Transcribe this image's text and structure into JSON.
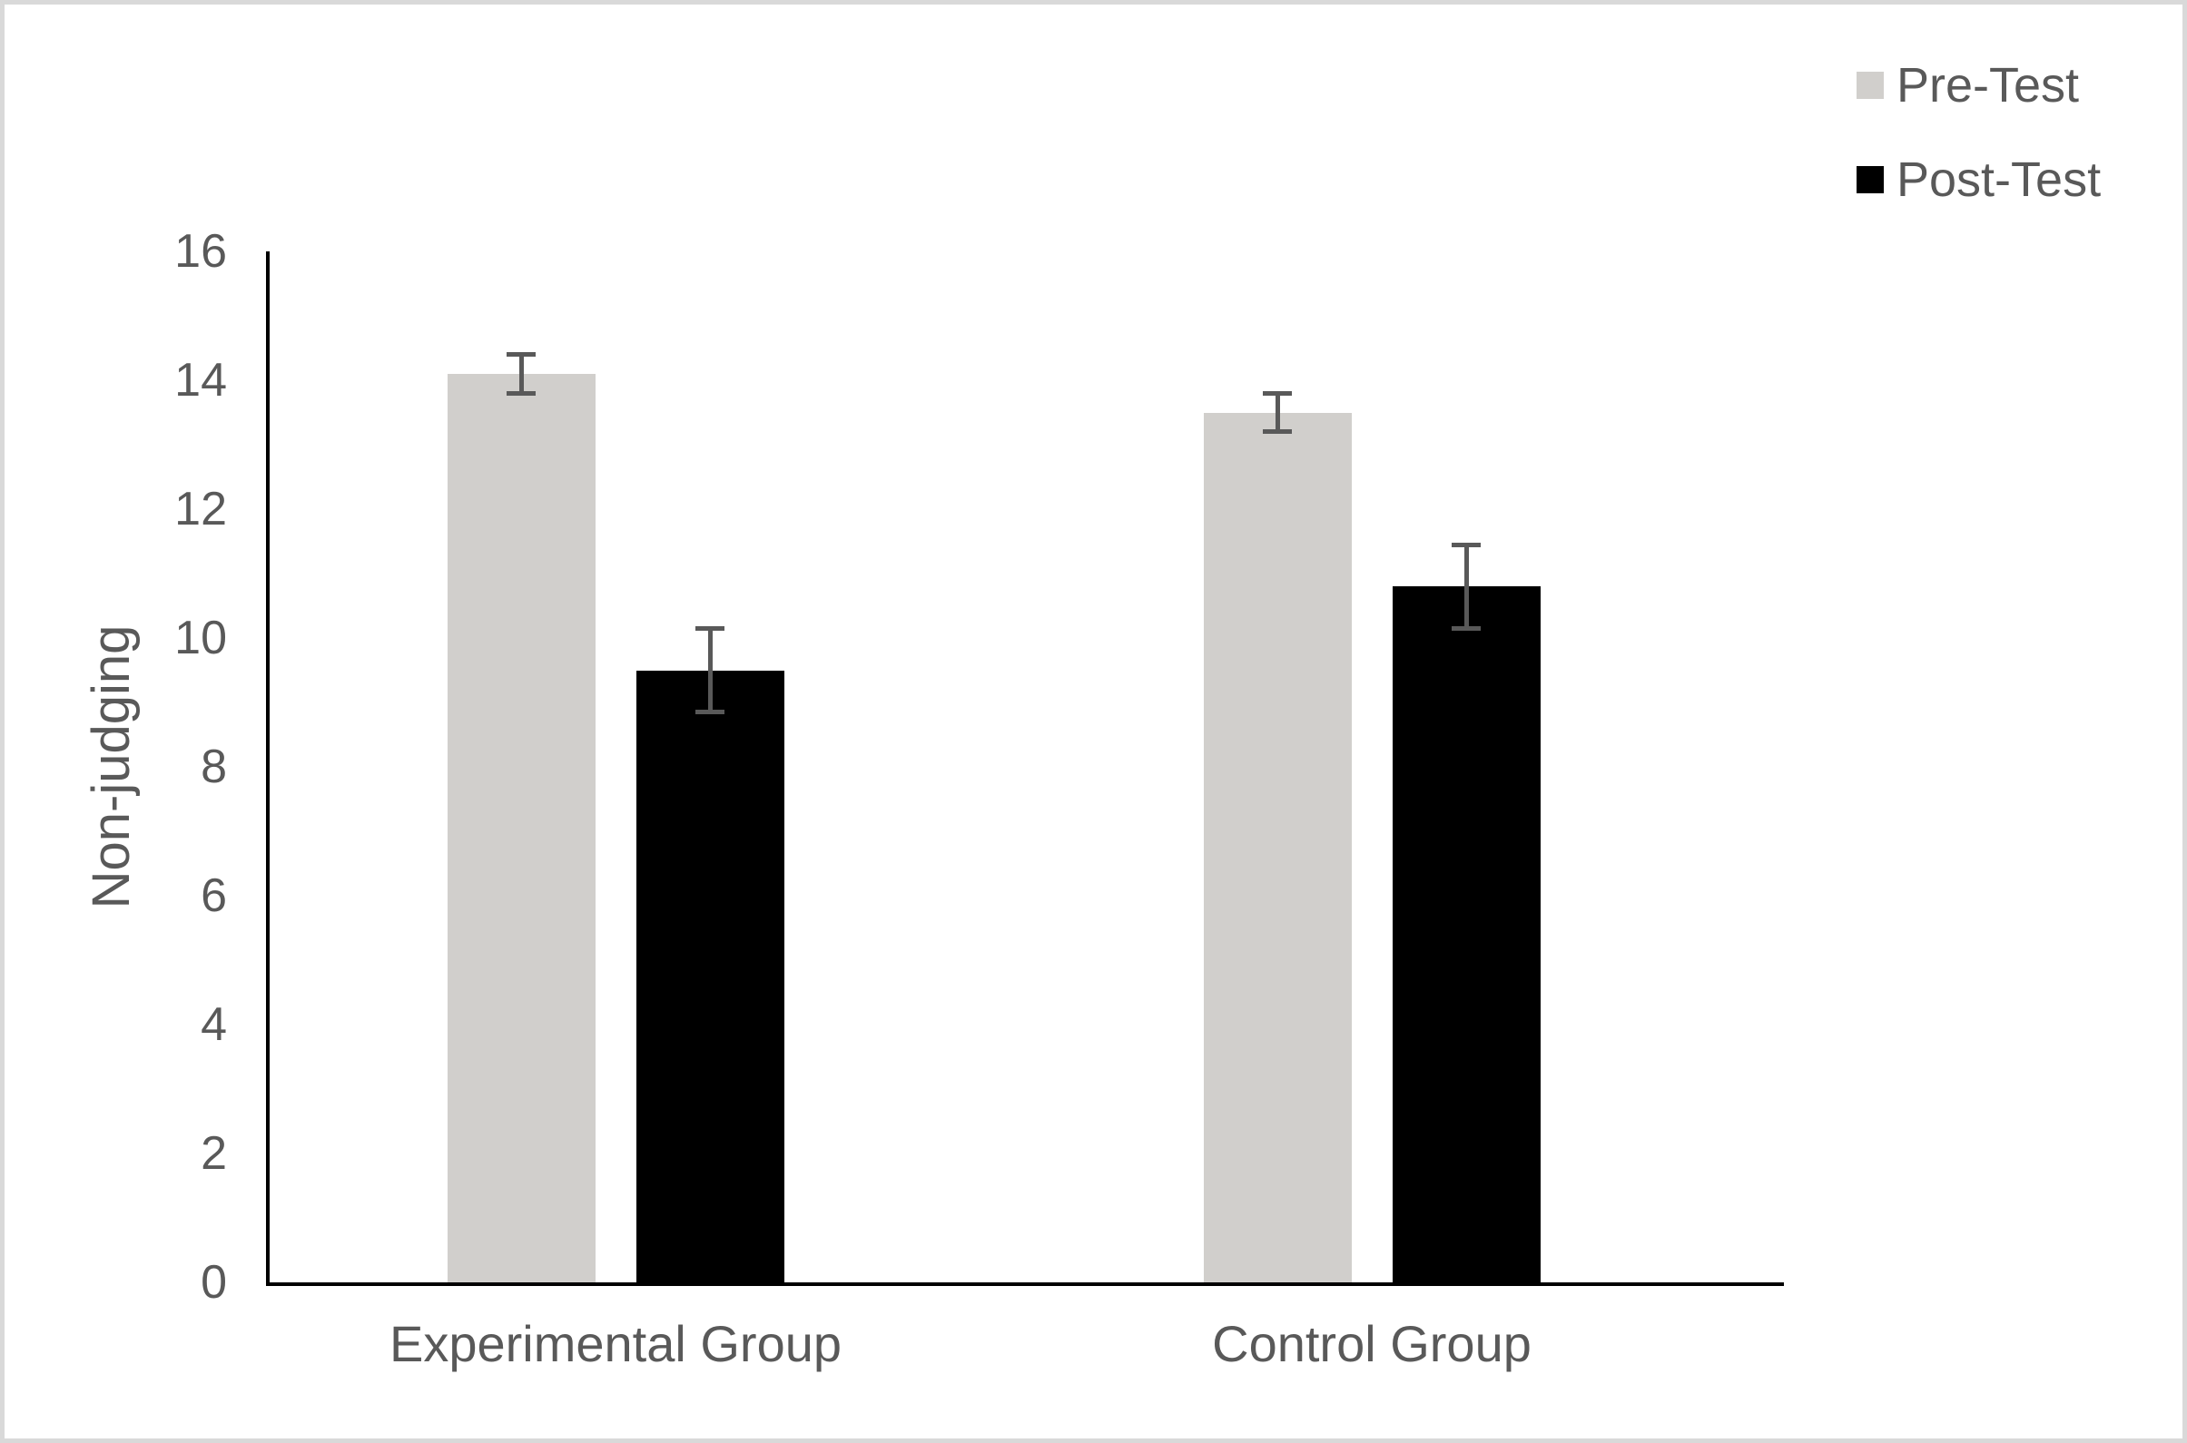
{
  "chart_data": {
    "type": "bar",
    "title": "",
    "xlabel": "",
    "ylabel": "Non-judging",
    "categories": [
      "Experimental Group",
      "Control Group"
    ],
    "series": [
      {
        "name": "Pre-Test",
        "color": "#d1cfcc",
        "values": [
          14.1,
          13.5
        ],
        "errors": [
          0.3,
          0.3
        ]
      },
      {
        "name": "Post-Test",
        "color": "#000000",
        "values": [
          9.5,
          10.8
        ],
        "errors": [
          0.65,
          0.65
        ]
      }
    ],
    "ylim": [
      0,
      16
    ],
    "yticks": [
      0,
      2,
      4,
      6,
      8,
      10,
      12,
      14,
      16
    ],
    "grid": false,
    "legend_position": "top-right",
    "colors": {
      "error_bar": "#595959",
      "axis_line": "#000000",
      "text": "#595959",
      "frame_border": "#d9d9d9",
      "background": "#ffffff"
    }
  }
}
